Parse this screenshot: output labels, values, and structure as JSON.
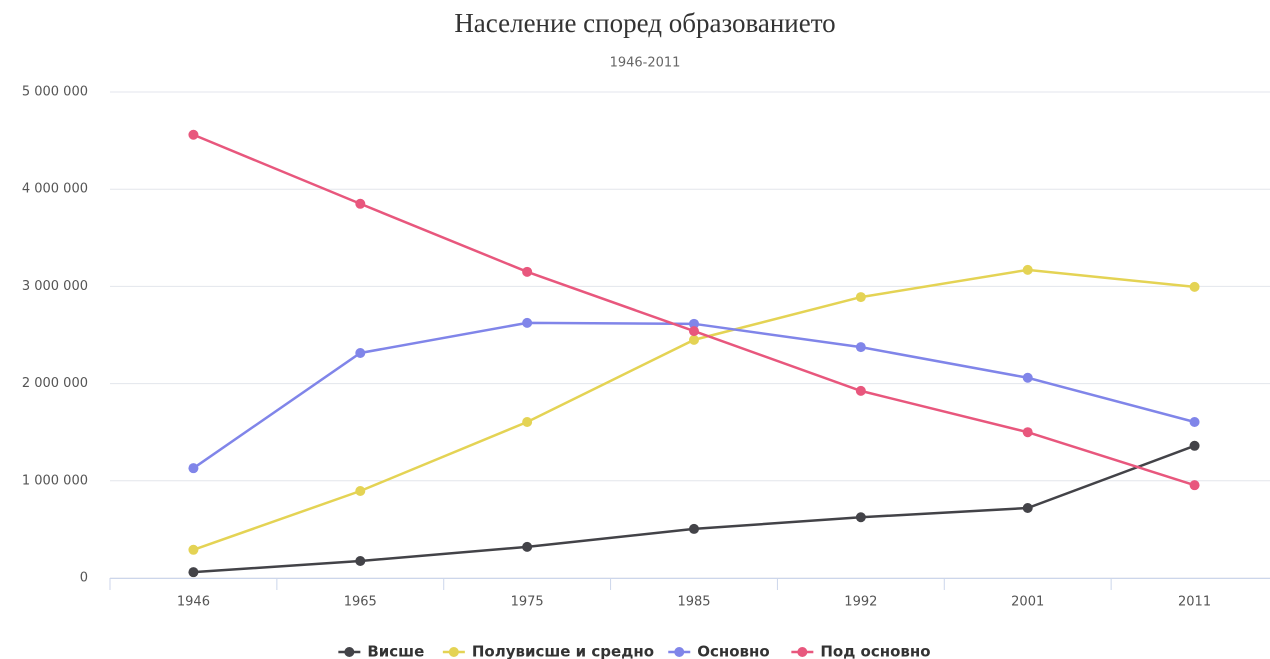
{
  "chart_data": {
    "type": "line",
    "title": "Население според образованието",
    "subtitle": "1946-2011",
    "categories": [
      "1946",
      "1965",
      "1975",
      "1985",
      "1992",
      "2001",
      "2011"
    ],
    "series": [
      {
        "name": "Висше",
        "color": "#434348",
        "values": [
          60000,
          175000,
          320000,
          505000,
          625000,
          720000,
          1360000
        ]
      },
      {
        "name": "Полувисше и средно",
        "color": "#e4d354",
        "values": [
          290000,
          895000,
          1605000,
          2450000,
          2890000,
          3170000,
          2995000
        ]
      },
      {
        "name": "Основно",
        "color": "#8085e9",
        "values": [
          1130000,
          2315000,
          2625000,
          2615000,
          2375000,
          2060000,
          1605000
        ]
      },
      {
        "name": "Под основно",
        "color": "#e8577d",
        "values": [
          4560000,
          3850000,
          3150000,
          2540000,
          1925000,
          1500000,
          955000
        ]
      }
    ],
    "ylim": [
      0,
      5000000
    ],
    "yticks": [
      0,
      {
        "value": 1000000,
        "label": "1 000 000"
      },
      {
        "value": 2000000,
        "label": "2 000 000"
      },
      {
        "value": 3000000,
        "label": "3 000 000"
      },
      {
        "value": 4000000,
        "label": "4 000 000"
      },
      {
        "value": 5000000,
        "label": "5 000 000"
      }
    ],
    "grid": true,
    "legend": "bottom"
  }
}
